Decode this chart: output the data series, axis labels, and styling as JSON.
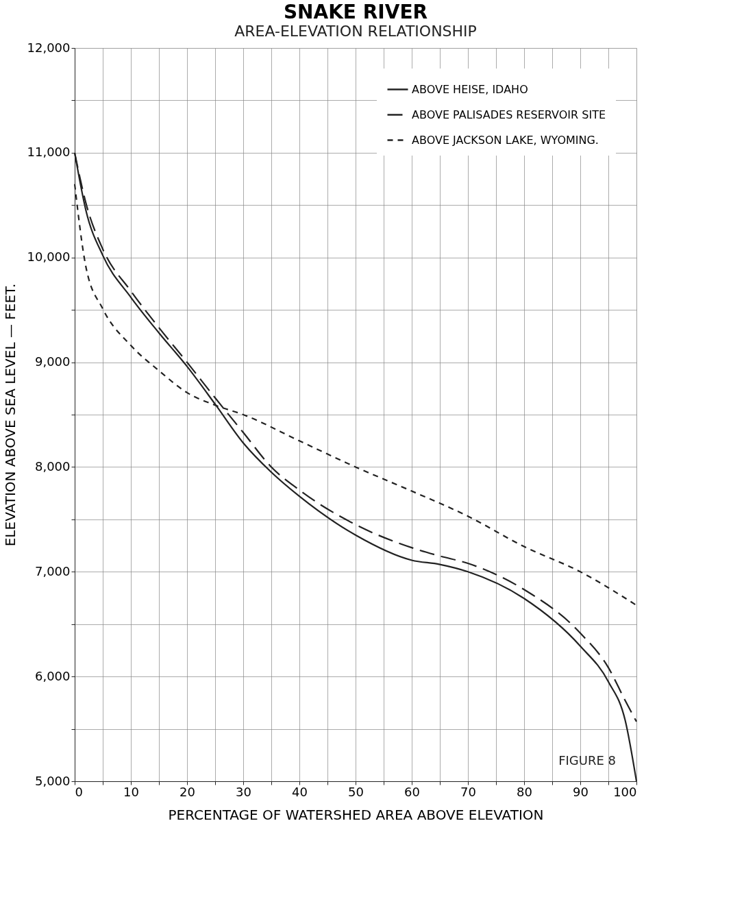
{
  "chart_data": {
    "type": "line",
    "title": "SNAKE RIVER",
    "subtitle": "AREA-ELEVATION RELATIONSHIP",
    "xlabel": "PERCENTAGE OF WATERSHED AREA ABOVE ELEVATION",
    "ylabel": "ELEVATION ABOVE SEA LEVEL — FEET.",
    "x": [
      0,
      2,
      5,
      10,
      15,
      20,
      25,
      30,
      35,
      40,
      50,
      60,
      65,
      70,
      80,
      90,
      95,
      98,
      100
    ],
    "series": [
      {
        "name": "ABOVE HEISE, IDAHO",
        "color": "#222222",
        "line_style": "solid",
        "values": [
          11000,
          10450,
          10020,
          9620,
          9280,
          8960,
          8600,
          8230,
          7950,
          7720,
          7350,
          7110,
          7070,
          7000,
          6745,
          6290,
          5950,
          5580,
          5000
        ]
      },
      {
        "name": "ABOVE PALISADES RESERVOIR SITE",
        "color": "#222222",
        "line_style": "dashed",
        "values": [
          11000,
          10520,
          10080,
          9680,
          9330,
          9000,
          8660,
          8330,
          8000,
          7780,
          7450,
          7230,
          7150,
          7080,
          6830,
          6415,
          6085,
          5770,
          5570
        ]
      },
      {
        "name": "ABOVE JACKSON LAKE, WYOMING.",
        "color": "#222222",
        "line_style": "dotted",
        "x": [
          0,
          2,
          5,
          10,
          15,
          20,
          25,
          30,
          40,
          50,
          60,
          70,
          80,
          90,
          100
        ],
        "values": [
          10700,
          9910,
          9510,
          9160,
          8920,
          8710,
          8590,
          8500,
          8250,
          8000,
          7770,
          7530,
          7240,
          7000,
          6680
        ]
      }
    ],
    "xlim": [
      0,
      100
    ],
    "ylim": [
      5000,
      12000
    ],
    "xticks": [
      0,
      {
        "value": 5,
        "label": null
      },
      10,
      {
        "value": 15,
        "label": null
      },
      20,
      {
        "value": 25,
        "label": null
      },
      30,
      {
        "value": 35,
        "label": null
      },
      40,
      {
        "value": 45,
        "label": null
      },
      50,
      {
        "value": 55,
        "label": null
      },
      60,
      {
        "value": 65,
        "label": null
      },
      70,
      {
        "value": 75,
        "label": null
      },
      80,
      {
        "value": 85,
        "label": null
      },
      90,
      {
        "value": 95,
        "label": null
      },
      100
    ],
    "yticks": [
      {
        "value": 5000,
        "label": "5,000"
      },
      {
        "value": 5500,
        "label": null
      },
      {
        "value": 6000,
        "label": "6,000"
      },
      {
        "value": 6500,
        "label": null
      },
      {
        "value": 7000,
        "label": "7,000"
      },
      {
        "value": 7500,
        "label": null
      },
      {
        "value": 8000,
        "label": "8,000"
      },
      {
        "value": 8500,
        "label": null
      },
      {
        "value": 9000,
        "label": "9,000"
      },
      {
        "value": 9500,
        "label": null
      },
      {
        "value": 10000,
        "label": "10,000"
      },
      {
        "value": 10500,
        "label": null
      },
      {
        "value": 11000,
        "label": "11,000"
      },
      {
        "value": 11500,
        "label": null
      },
      {
        "value": 12000,
        "label": "12,000"
      }
    ],
    "grid": true,
    "legend": "top right",
    "marker": "none",
    "annotations": [
      "FIGURE 8"
    ]
  }
}
